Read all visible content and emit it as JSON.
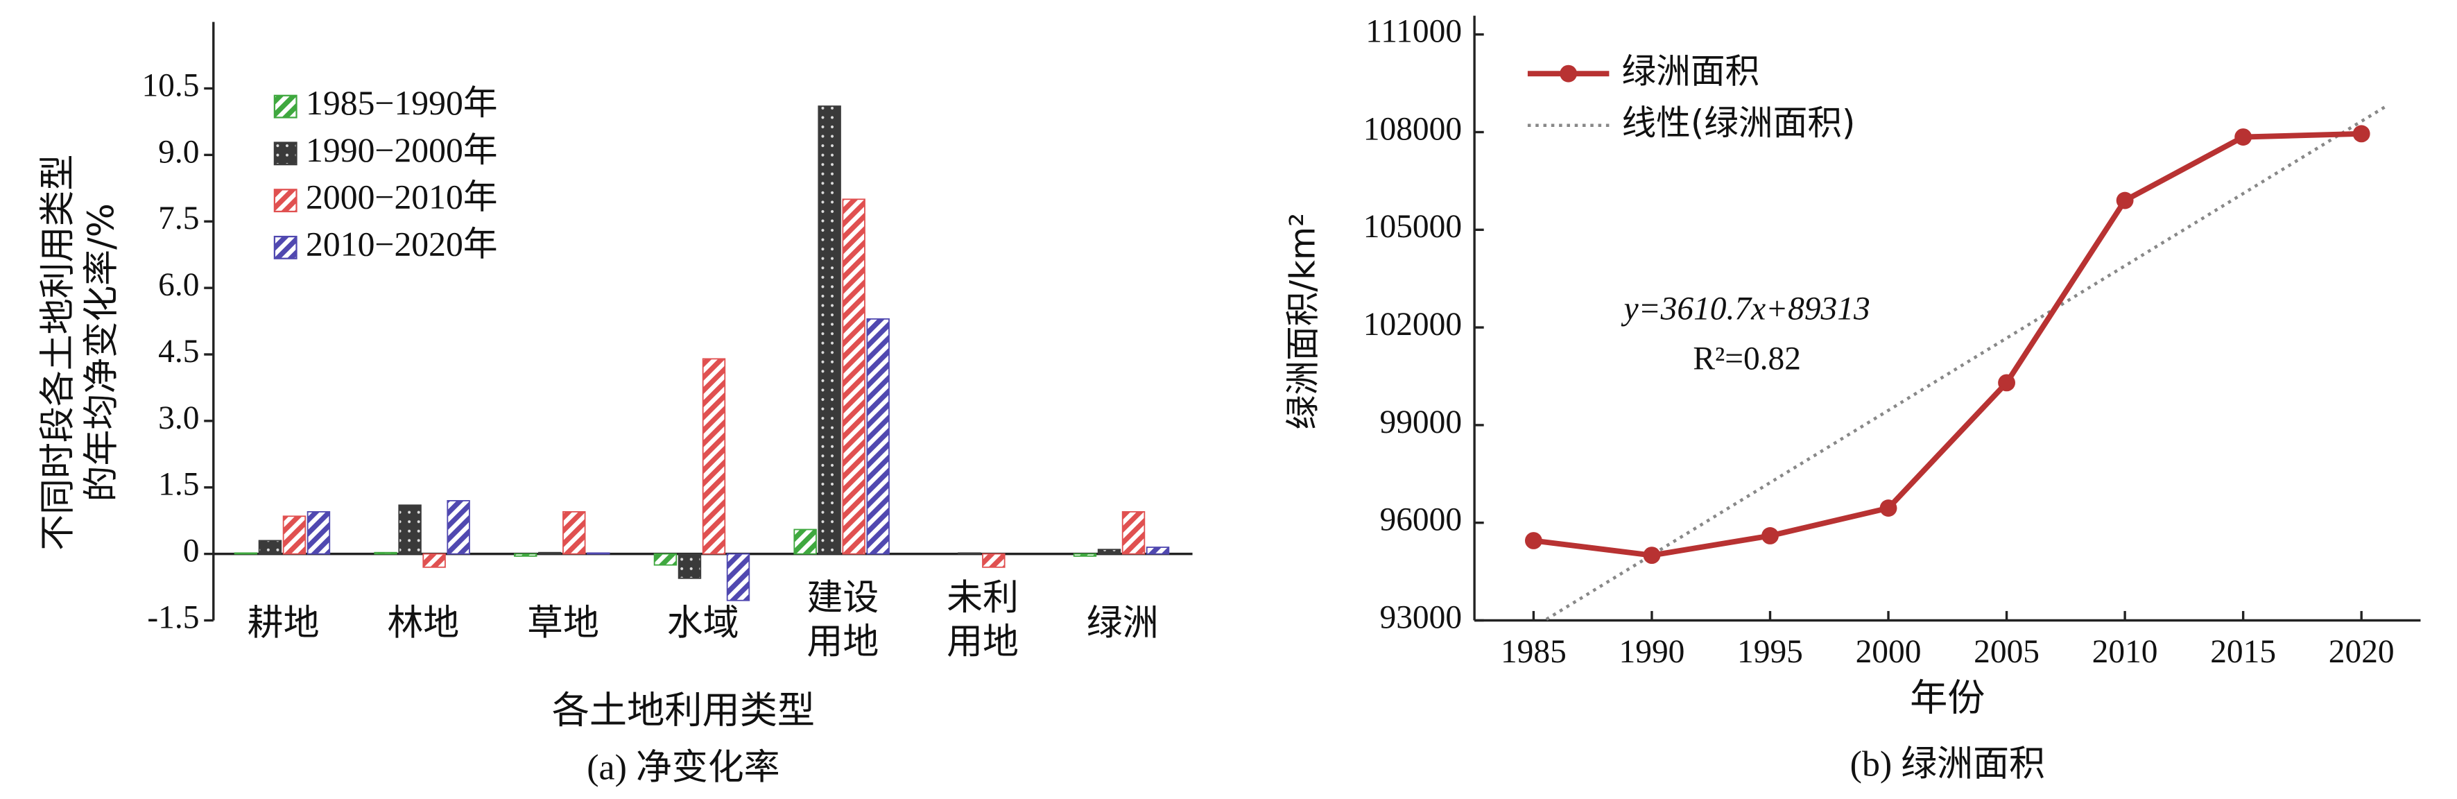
{
  "chart_data": [
    {
      "type": "bar",
      "y_label": [
        "不同时段各土地利用类型",
        "的年均净变化率/%"
      ],
      "x_label": "各土地利用类型",
      "caption": "(a) 净变化率",
      "categories": [
        "耕地",
        "林地",
        "草地",
        "水域",
        "建设用地",
        "未利用地",
        "绿洲"
      ],
      "series": [
        {
          "name": "1985−1990年",
          "color": "#3fa83f",
          "values": [
            0.02,
            0.03,
            -0.05,
            -0.25,
            0.55,
            0,
            -0.05
          ]
        },
        {
          "name": "1990−2000年",
          "color": "#3a3a3a",
          "values": [
            0.3,
            1.1,
            0.03,
            -0.55,
            10.1,
            0.02,
            0.1
          ]
        },
        {
          "name": "2000−2010年",
          "color": "#e05050",
          "values": [
            0.85,
            -0.3,
            0.95,
            4.4,
            8.0,
            -0.3,
            0.95
          ]
        },
        {
          "name": "2010−2020年",
          "color": "#5048b0",
          "values": [
            0.95,
            1.2,
            0.02,
            -1.05,
            5.3,
            0,
            0.15
          ]
        }
      ],
      "ylim": [
        -1.5,
        12
      ],
      "yticks": [
        -1.5,
        0,
        1.5,
        {
          "value": 3,
          "label": "3.0"
        },
        4.5,
        {
          "value": 6,
          "label": "6.0"
        },
        7.5,
        {
          "value": 9,
          "label": "9.0"
        },
        10.5
      ],
      "legend": "upper-left"
    },
    {
      "type": "line",
      "y_label": "绿洲面积/km²",
      "x_label": "年份",
      "caption": "(b) 绿洲面积",
      "x": [
        1985,
        1990,
        1995,
        2000,
        2005,
        2010,
        2015,
        2020
      ],
      "series": [
        {
          "name": "绿洲面积",
          "color": "#b83232",
          "values": [
            95450,
            95000,
            95600,
            96450,
            100300,
            105900,
            107850,
            107950
          ]
        }
      ],
      "trend": {
        "name": "线性(绿洲面积)",
        "color": "#888888",
        "equation": "y=3610.7x+89313",
        "r2": "R²=0.82"
      },
      "xlim": [
        1982.5,
        2022.5
      ],
      "xticks": [
        1985,
        1990,
        1995,
        2000,
        2005,
        2010,
        2015,
        2020
      ],
      "ylim": [
        93000,
        111000
      ],
      "yticks": [
        93000,
        96000,
        99000,
        102000,
        105000,
        108000,
        111000
      ],
      "legend": "upper-left"
    }
  ]
}
